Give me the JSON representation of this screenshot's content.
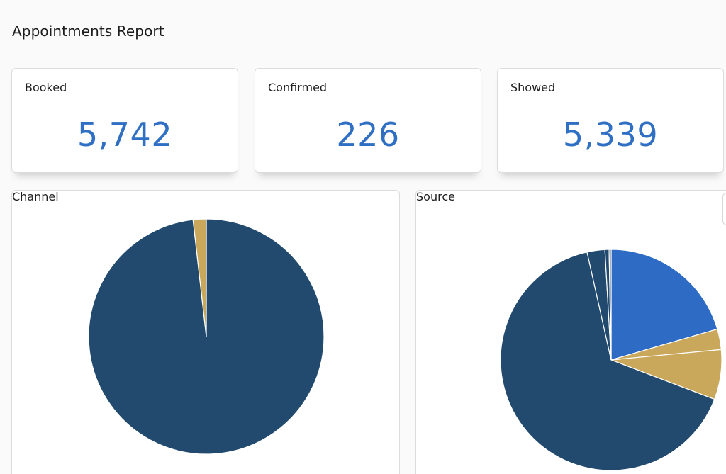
{
  "header": {
    "title": "Appointments Report"
  },
  "stats": [
    {
      "label": "Booked",
      "value": "5,742"
    },
    {
      "label": "Confirmed",
      "value": "226"
    },
    {
      "label": "Showed",
      "value": "5,339"
    }
  ],
  "colors": {
    "stat_value": "#2f6fc4",
    "navy": "#214a6e",
    "gold": "#c9a85c",
    "blue": "#2d6bc4",
    "slice_border": "#ffffff"
  },
  "chart_data": [
    {
      "type": "pie",
      "title": "Channel",
      "slices": [
        {
          "value": 98.2,
          "color": "#214a6e"
        },
        {
          "value": 1.8,
          "color": "#c9a85c"
        }
      ],
      "start_angle_deg": 0
    },
    {
      "type": "pie",
      "title": "Source",
      "slices": [
        {
          "value": 20.5,
          "color": "#2d6bc4"
        },
        {
          "value": 3.0,
          "color": "#c9a85c"
        },
        {
          "value": 7.3,
          "color": "#c9a85c"
        },
        {
          "value": 65.7,
          "color": "#214a6e"
        },
        {
          "value": 2.6,
          "color": "#214a6e"
        },
        {
          "value": 0.6,
          "color": "#214a6e"
        },
        {
          "value": 0.3,
          "color": "#214a6e"
        }
      ],
      "start_angle_deg": 0
    }
  ]
}
